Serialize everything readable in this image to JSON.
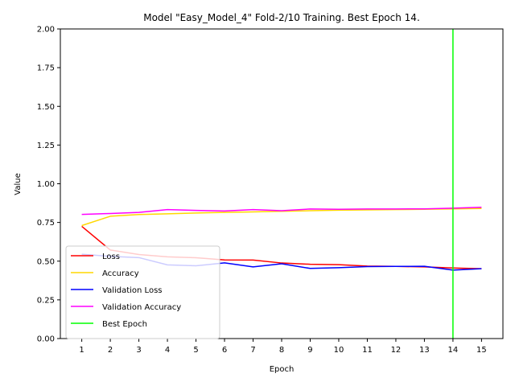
{
  "chart_data": {
    "type": "line",
    "title": "Model \"Easy_Model_4\" Fold-2/10 Training. Best Epoch 14.",
    "xlabel": "Epoch",
    "ylabel": "Value",
    "x": [
      1,
      2,
      3,
      4,
      5,
      6,
      7,
      8,
      9,
      10,
      11,
      12,
      13,
      14,
      15
    ],
    "xticks": [
      "1",
      "2",
      "3",
      "4",
      "5",
      "6",
      "7",
      "8",
      "9",
      "10",
      "11",
      "12",
      "13",
      "14",
      "15"
    ],
    "xlim": [
      0.25,
      15.75
    ],
    "ylim": [
      0.0,
      2.0
    ],
    "yticks": [
      "0.00",
      "0.25",
      "0.50",
      "0.75",
      "1.00",
      "1.25",
      "1.50",
      "1.75",
      "2.00"
    ],
    "grid": false,
    "legend_position": "lower-left",
    "series": [
      {
        "name": "Loss",
        "color": "#ff0000",
        "values": [
          0.725,
          0.572,
          0.543,
          0.528,
          0.522,
          0.508,
          0.507,
          0.488,
          0.48,
          0.477,
          0.468,
          0.466,
          0.463,
          0.456,
          0.451
        ]
      },
      {
        "name": "Accuracy",
        "color": "#ffd700",
        "values": [
          0.73,
          0.79,
          0.801,
          0.806,
          0.811,
          0.815,
          0.818,
          0.822,
          0.826,
          0.829,
          0.831,
          0.833,
          0.835,
          0.838,
          0.84
        ]
      },
      {
        "name": "Validation Loss",
        "color": "#0000ff",
        "values": [
          0.545,
          0.531,
          0.523,
          0.476,
          0.47,
          0.489,
          0.463,
          0.483,
          0.453,
          0.458,
          0.465,
          0.466,
          0.467,
          0.442,
          0.451
        ]
      },
      {
        "name": "Validation  Accuracy",
        "color": "#ff00ff",
        "values": [
          0.802,
          0.808,
          0.815,
          0.833,
          0.828,
          0.824,
          0.833,
          0.826,
          0.837,
          0.835,
          0.837,
          0.837,
          0.838,
          0.842,
          0.848
        ]
      }
    ],
    "best_epoch": {
      "name": "Best Epoch",
      "x": 14,
      "color": "#00ff00"
    }
  }
}
